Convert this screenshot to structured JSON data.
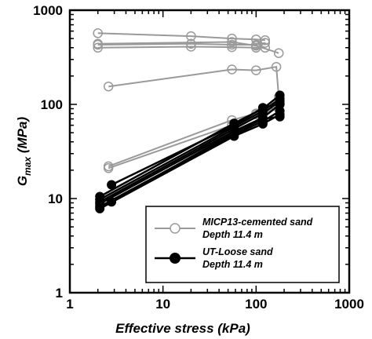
{
  "chart_data": {
    "type": "line",
    "xlabel": "Effective stress (kPa)",
    "ylabel_main": "G",
    "ylabel_sub": "max",
    "ylabel_unit": " (MPa)",
    "xscale": "log",
    "yscale": "log",
    "xlim": [
      1,
      1000
    ],
    "ylim": [
      1,
      1000
    ],
    "x_ticks": [
      1,
      10,
      100,
      1000
    ],
    "x_tick_labels": [
      "1",
      "10",
      "100",
      "1000"
    ],
    "y_ticks": [
      1,
      10,
      100,
      1000
    ],
    "y_tick_labels": [
      "1",
      "10",
      "100",
      "1000"
    ],
    "grid": false,
    "legend_position": "bottom-right",
    "colors": {
      "micp": "#9a9a9a",
      "loose": "#000000"
    },
    "series": [
      {
        "name": "MICP13-cemented sand",
        "name_line2": "Depth 11.4 m",
        "marker": "open-circle",
        "color": "#9a9a9a",
        "lines": [
          [
            [
              2,
              570
            ],
            [
              20,
              530
            ],
            [
              55,
              500
            ],
            [
              100,
              490
            ],
            [
              125,
              480
            ]
          ],
          [
            [
              2,
              430
            ],
            [
              20,
              440
            ],
            [
              55,
              430
            ],
            [
              100,
              430
            ],
            [
              125,
              450
            ]
          ],
          [
            [
              2,
              400
            ],
            [
              20,
              410
            ],
            [
              55,
              405
            ],
            [
              100,
              400
            ],
            [
              125,
              400
            ]
          ],
          [
            [
              2,
              440
            ],
            [
              55,
              460
            ],
            [
              100,
              420
            ],
            [
              175,
              350
            ]
          ],
          [
            [
              2.6,
              155
            ],
            [
              55,
              235
            ],
            [
              100,
              230
            ],
            [
              165,
              250
            ],
            [
              175,
              120
            ]
          ],
          [
            [
              2.6,
              22
            ],
            [
              55,
              68
            ],
            [
              100,
              80
            ],
            [
              175,
              95
            ]
          ],
          [
            [
              2.6,
              21
            ],
            [
              55,
              60
            ],
            [
              100,
              78
            ],
            [
              175,
              90
            ]
          ]
        ]
      },
      {
        "name": "UT-Loose sand",
        "name_line2": "Depth 11.4 m",
        "marker": "filled-circle",
        "color": "#000000",
        "lines": [
          [
            [
              2.1,
              10.5
            ],
            [
              58,
              63
            ],
            [
              118,
              90
            ],
            [
              180,
              125
            ]
          ],
          [
            [
              2.1,
              9.8
            ],
            [
              58,
              58
            ],
            [
              118,
              85
            ],
            [
              180,
              115
            ]
          ],
          [
            [
              2.1,
              9.2
            ],
            [
              58,
              55
            ],
            [
              118,
              80
            ],
            [
              180,
              108
            ]
          ],
          [
            [
              2.1,
              8.8
            ],
            [
              58,
              52
            ],
            [
              118,
              72
            ],
            [
              180,
              100
            ]
          ],
          [
            [
              2.1,
              8.2
            ],
            [
              58,
              48
            ],
            [
              118,
              66
            ],
            [
              180,
              85
            ]
          ],
          [
            [
              2.1,
              7.8
            ],
            [
              58,
              46
            ],
            [
              118,
              62
            ],
            [
              180,
              78
            ]
          ],
          [
            [
              2.8,
              14
            ],
            [
              58,
              60
            ],
            [
              118,
              92
            ],
            [
              180,
              102
            ]
          ],
          [
            [
              2.8,
              9.2
            ],
            [
              58,
              50
            ],
            [
              118,
              70
            ],
            [
              180,
              74
            ]
          ]
        ]
      }
    ]
  }
}
